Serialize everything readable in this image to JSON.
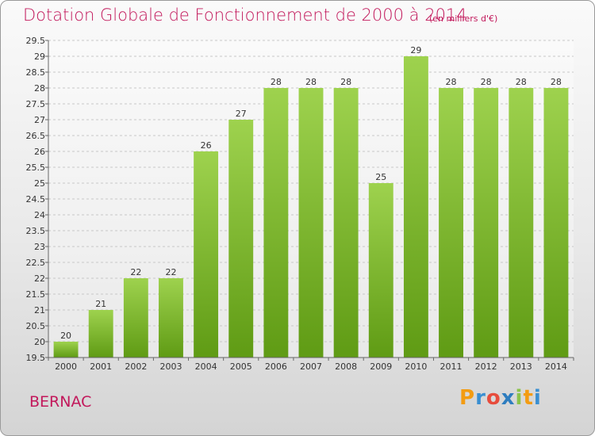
{
  "header": {
    "title": "Dotation Globale de Fonctionnement de 2000 à 2014",
    "subtitle": "(en milliers d'€)"
  },
  "footer": {
    "commune": "BERNAC",
    "logo": "Proxiti"
  },
  "colors": {
    "bar_top": "#9ed24e",
    "bar_bottom": "#5f9b14",
    "title": "#c2185b"
  },
  "chart_data": {
    "type": "bar",
    "title": "Dotation Globale de Fonctionnement de 2000 à 2014",
    "subtitle": "(en milliers d'€)",
    "xlabel": "",
    "ylabel": "",
    "categories": [
      "2000",
      "2001",
      "2002",
      "2003",
      "2004",
      "2005",
      "2006",
      "2007",
      "2008",
      "2009",
      "2010",
      "2011",
      "2012",
      "2013",
      "2014"
    ],
    "values": [
      20,
      21,
      22,
      22,
      26,
      27,
      28,
      28,
      28,
      25,
      29,
      28,
      28,
      28,
      28
    ],
    "ylim": [
      19.5,
      29.5
    ],
    "yticks": [
      "19.5",
      "20",
      "20.5",
      "21",
      "21.5",
      "22",
      "22.5",
      "23",
      "23.5",
      "24",
      "24.5",
      "25",
      "25.5",
      "26",
      "26.5",
      "27",
      "27.5",
      "28",
      "28.5",
      "29",
      "29.5"
    ],
    "grid": true,
    "legend": "none"
  }
}
